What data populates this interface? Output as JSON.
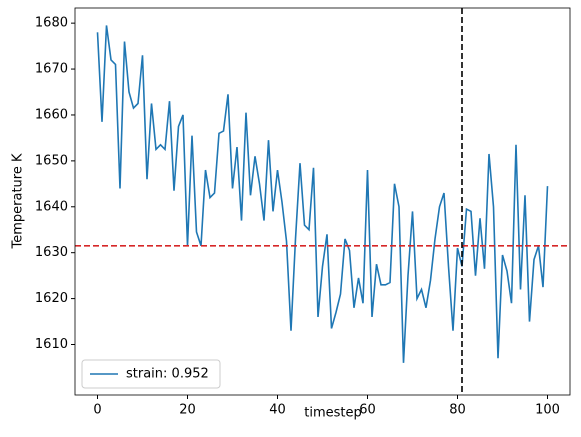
{
  "chart_data": {
    "type": "line",
    "xlabel": "timestep",
    "ylabel": "Temperature K",
    "x": [
      0,
      1,
      2,
      3,
      4,
      5,
      6,
      7,
      8,
      9,
      10,
      11,
      12,
      13,
      14,
      15,
      16,
      17,
      18,
      19,
      20,
      21,
      22,
      23,
      24,
      25,
      26,
      27,
      28,
      29,
      30,
      31,
      32,
      33,
      34,
      35,
      36,
      37,
      38,
      39,
      40,
      41,
      42,
      43,
      44,
      45,
      46,
      47,
      48,
      49,
      50,
      51,
      52,
      53,
      54,
      55,
      56,
      57,
      58,
      59,
      60,
      61,
      62,
      63,
      64,
      65,
      66,
      67,
      68,
      69,
      70,
      71,
      72,
      73,
      74,
      75,
      76,
      77,
      78,
      79,
      80,
      81,
      82,
      83,
      84,
      85,
      86,
      87,
      88,
      89,
      90,
      91,
      92,
      93,
      94,
      95,
      96,
      97,
      98,
      99,
      100
    ],
    "series": [
      {
        "name": "strain: 0.952",
        "color": "#1f77b4",
        "values": [
          1678,
          1658.5,
          1679.5,
          1672,
          1671,
          1644,
          1676,
          1665,
          1661.5,
          1662.5,
          1673,
          1646,
          1662.5,
          1652.5,
          1653.5,
          1652.5,
          1663,
          1643.5,
          1657.5,
          1660,
          1631.5,
          1655.5,
          1634.5,
          1631.5,
          1648,
          1642,
          1643,
          1656,
          1656.5,
          1664.5,
          1644,
          1653,
          1637,
          1660.5,
          1642.5,
          1651,
          1645,
          1637,
          1654.5,
          1639,
          1648,
          1641,
          1632.5,
          1613,
          1633,
          1649.5,
          1636,
          1635,
          1648.5,
          1616,
          1627,
          1634,
          1613.5,
          1617,
          1621,
          1633,
          1630.5,
          1618,
          1624.5,
          1619,
          1648,
          1616,
          1627.5,
          1623,
          1623,
          1623.5,
          1645,
          1640,
          1606,
          1625,
          1639,
          1620,
          1622,
          1618,
          1624,
          1633,
          1640,
          1643,
          1627,
          1613,
          1631,
          1627,
          1639.5,
          1639,
          1625,
          1637.5,
          1626.5,
          1651.5,
          1640,
          1607,
          1629.5,
          1626,
          1619,
          1653.5,
          1622,
          1642.5,
          1615,
          1628.5,
          1631.5,
          1622.5,
          1644.5
        ]
      }
    ],
    "hline": {
      "value": 1631.5,
      "color": "#d62728"
    },
    "vline": {
      "value": 81,
      "color": "#000000"
    },
    "xlim": [
      -5,
      105
    ],
    "ylim": [
      1599,
      1683.3
    ],
    "xticks": [
      0,
      20,
      40,
      60,
      80,
      100
    ],
    "yticks": [
      1610,
      1620,
      1630,
      1640,
      1650,
      1660,
      1670,
      1680
    ],
    "legend": "lower left"
  }
}
